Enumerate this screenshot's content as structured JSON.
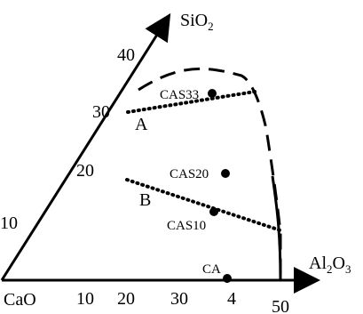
{
  "labels": {
    "origin": "CaO",
    "sio2_axis_prefix": "SiO",
    "sio2_axis_sub": "2",
    "al2o3_axis_a": "Al",
    "al2o3_axis_sub1": "2",
    "al2o3_axis_b": "O",
    "al2o3_axis_sub2": "3"
  },
  "axes": {
    "x_ticks": [
      "10",
      "20",
      "30",
      "4",
      "50"
    ],
    "y_ticks": [
      "10",
      "20",
      "30",
      "40"
    ]
  },
  "points": [
    {
      "label": "CAS33"
    },
    {
      "label": "CAS20"
    },
    {
      "label": "CAS10"
    },
    {
      "label": "CA"
    }
  ],
  "lines": {
    "A": "A",
    "B": "B"
  },
  "colors": {
    "ink": "#000000",
    "background": "#ffffff"
  }
}
